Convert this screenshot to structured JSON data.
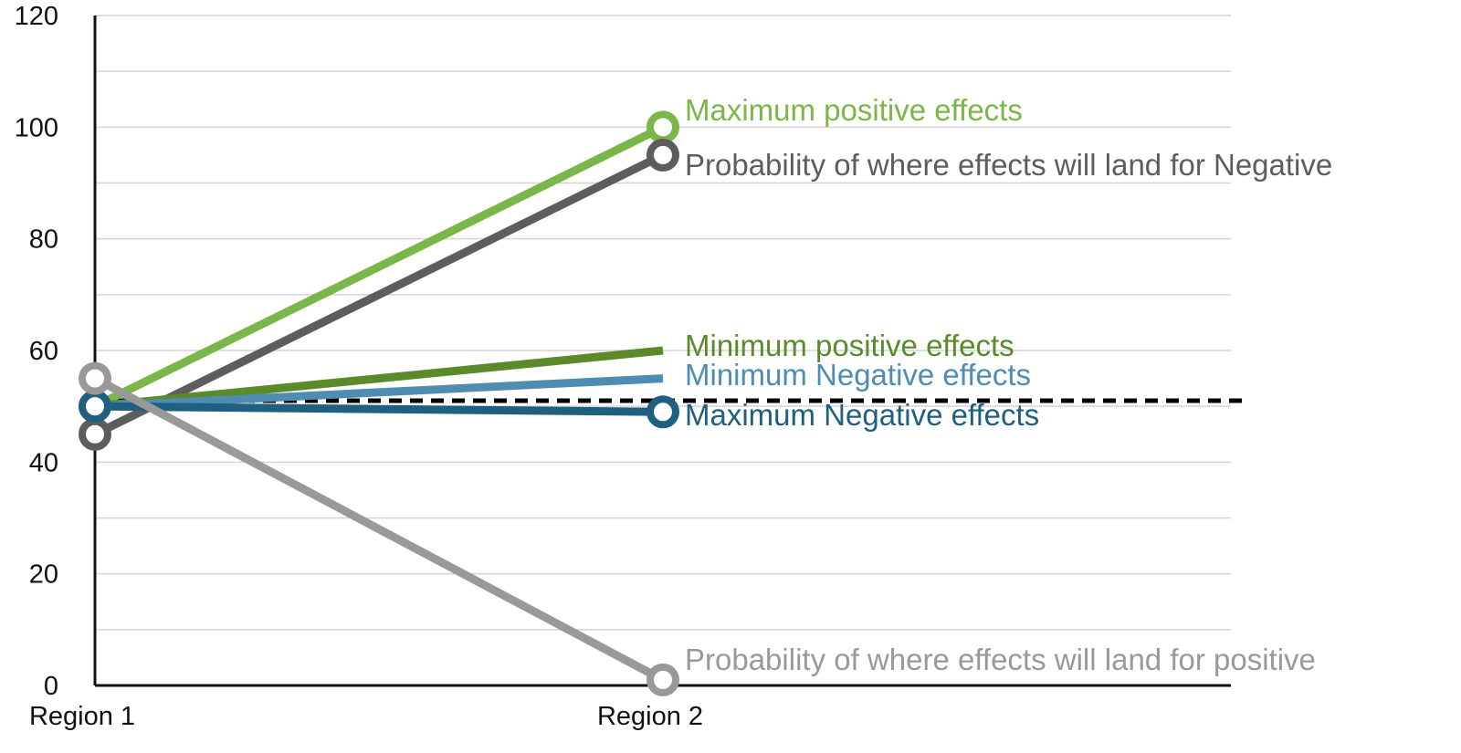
{
  "chart_data": {
    "type": "line",
    "title": "",
    "xlabel": "",
    "ylabel": "",
    "categories": [
      "Region 1",
      "Region 2"
    ],
    "ylim": [
      0,
      120
    ],
    "y_ticks": [
      0,
      20,
      40,
      60,
      80,
      100,
      120
    ],
    "grid": true,
    "legend": "none (series labelled at end of lines)",
    "series": [
      {
        "name": "Maximum positive effects",
        "values": [
          50,
          100
        ],
        "color": "#7ab648",
        "marker": "circle"
      },
      {
        "name": "Probability of where effects will land for Negative",
        "values": [
          45,
          95
        ],
        "color": "#5d5d5d",
        "marker": "circle"
      },
      {
        "name": "Minimum positive effects",
        "values": [
          50,
          60
        ],
        "color": "#5b8a2b",
        "marker": "none"
      },
      {
        "name": "Minimum Negative effects",
        "values": [
          50,
          55
        ],
        "color": "#4e8cb2",
        "marker": "none"
      },
      {
        "name": "Maximum Negative effects",
        "values": [
          50,
          49
        ],
        "color": "#1f5f7f",
        "marker": "circle"
      },
      {
        "name": "Probability of where effects will land for positive",
        "values": [
          55,
          1
        ],
        "color": "#999999",
        "marker": "circle"
      }
    ],
    "reference_line": {
      "value": 51,
      "style": "dashed",
      "color": "#000000"
    }
  }
}
